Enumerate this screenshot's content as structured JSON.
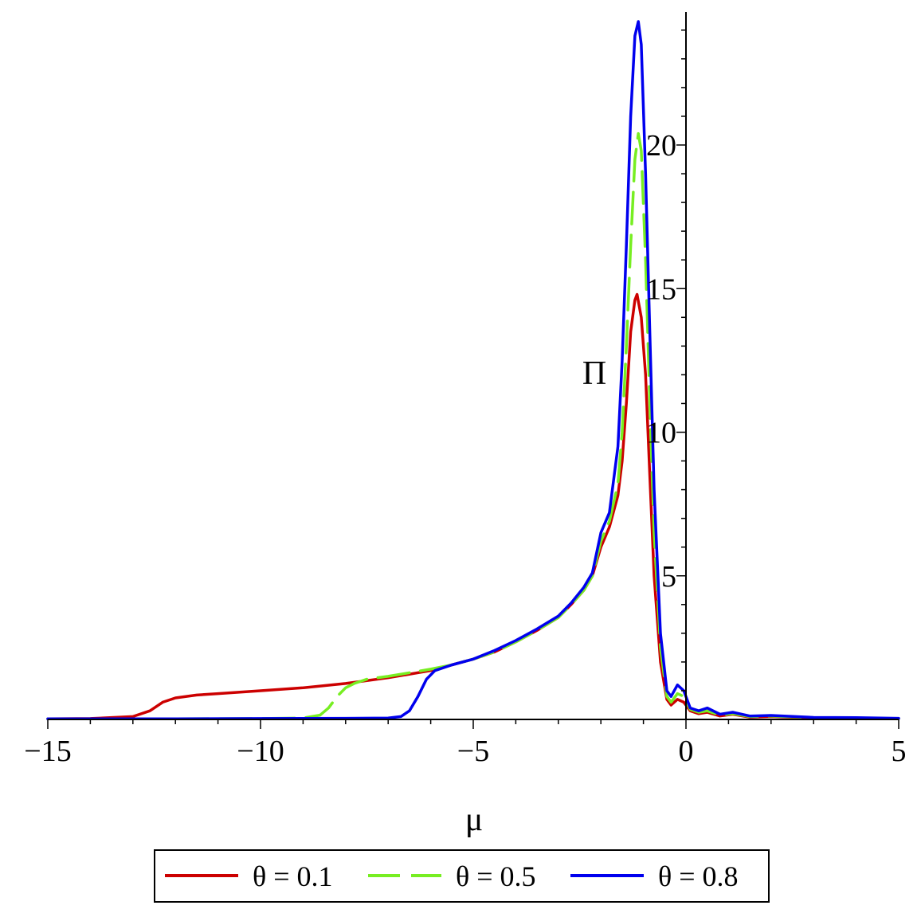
{
  "chart_data": {
    "type": "line",
    "xlabel": "μ",
    "ylabel": "Π",
    "xlim": [
      -15,
      5
    ],
    "ylim": [
      0,
      24.5
    ],
    "x_ticks": [
      -15,
      -10,
      -5,
      0,
      5
    ],
    "x_tick_labels": [
      "−15",
      "−10",
      "−5",
      "0",
      "5"
    ],
    "y_ticks": [
      5,
      10,
      15,
      20
    ],
    "y_tick_labels": [
      "5",
      "10",
      "15",
      "20"
    ],
    "legend_position": "bottom",
    "series": [
      {
        "name": "θ = 0.1",
        "color": "#cc0000",
        "dash": "solid",
        "points": [
          [
            -15,
            0.02
          ],
          [
            -14,
            0.03
          ],
          [
            -13,
            0.1
          ],
          [
            -12.6,
            0.3
          ],
          [
            -12.3,
            0.6
          ],
          [
            -12,
            0.75
          ],
          [
            -11.5,
            0.85
          ],
          [
            -11,
            0.9
          ],
          [
            -10,
            1.0
          ],
          [
            -9,
            1.1
          ],
          [
            -8,
            1.25
          ],
          [
            -7,
            1.45
          ],
          [
            -6,
            1.7
          ],
          [
            -5.5,
            1.9
          ],
          [
            -5,
            2.1
          ],
          [
            -4.5,
            2.35
          ],
          [
            -4,
            2.7
          ],
          [
            -3.5,
            3.1
          ],
          [
            -3,
            3.55
          ],
          [
            -2.7,
            4.0
          ],
          [
            -2.4,
            4.5
          ],
          [
            -2.2,
            5.0
          ],
          [
            -2,
            6.0
          ],
          [
            -1.8,
            6.7
          ],
          [
            -1.6,
            7.8
          ],
          [
            -1.5,
            9.0
          ],
          [
            -1.4,
            11.0
          ],
          [
            -1.3,
            13.5
          ],
          [
            -1.2,
            14.6
          ],
          [
            -1.15,
            14.8
          ],
          [
            -1.05,
            14.0
          ],
          [
            -0.95,
            12.0
          ],
          [
            -0.85,
            8.5
          ],
          [
            -0.75,
            5.0
          ],
          [
            -0.6,
            2.0
          ],
          [
            -0.45,
            0.7
          ],
          [
            -0.35,
            0.5
          ],
          [
            -0.2,
            0.7
          ],
          [
            -0.05,
            0.6
          ],
          [
            0.1,
            0.3
          ],
          [
            0.3,
            0.2
          ],
          [
            0.5,
            0.25
          ],
          [
            0.8,
            0.12
          ],
          [
            1.1,
            0.18
          ],
          [
            1.5,
            0.08
          ],
          [
            2,
            0.1
          ],
          [
            3,
            0.05
          ],
          [
            4,
            0.04
          ],
          [
            5,
            0.03
          ]
        ]
      },
      {
        "name": "θ = 0.5",
        "color": "#77ee22",
        "dash": "dashed",
        "points": [
          [
            -15,
            0.02
          ],
          [
            -12,
            0.02
          ],
          [
            -10,
            0.03
          ],
          [
            -9,
            0.05
          ],
          [
            -8.6,
            0.15
          ],
          [
            -8.4,
            0.4
          ],
          [
            -8.2,
            0.8
          ],
          [
            -8,
            1.1
          ],
          [
            -7.8,
            1.25
          ],
          [
            -7.5,
            1.4
          ],
          [
            -7,
            1.5
          ],
          [
            -6,
            1.75
          ],
          [
            -5.5,
            1.9
          ],
          [
            -5,
            2.1
          ],
          [
            -4.5,
            2.35
          ],
          [
            -4,
            2.7
          ],
          [
            -3.5,
            3.1
          ],
          [
            -3,
            3.55
          ],
          [
            -2.7,
            4.0
          ],
          [
            -2.4,
            4.5
          ],
          [
            -2.2,
            5.0
          ],
          [
            -2,
            6.2
          ],
          [
            -1.8,
            6.9
          ],
          [
            -1.6,
            8.2
          ],
          [
            -1.5,
            10.0
          ],
          [
            -1.4,
            13.0
          ],
          [
            -1.3,
            16.5
          ],
          [
            -1.2,
            19.5
          ],
          [
            -1.12,
            20.4
          ],
          [
            -1.05,
            19.8
          ],
          [
            -0.95,
            16.0
          ],
          [
            -0.85,
            11.0
          ],
          [
            -0.75,
            6.5
          ],
          [
            -0.6,
            2.5
          ],
          [
            -0.45,
            0.8
          ],
          [
            -0.35,
            0.6
          ],
          [
            -0.2,
            0.9
          ],
          [
            -0.05,
            0.8
          ],
          [
            0.1,
            0.35
          ],
          [
            0.3,
            0.25
          ],
          [
            0.5,
            0.3
          ],
          [
            0.8,
            0.15
          ],
          [
            1.1,
            0.2
          ],
          [
            1.5,
            0.1
          ],
          [
            2,
            0.12
          ],
          [
            3,
            0.06
          ],
          [
            4,
            0.05
          ],
          [
            5,
            0.03
          ]
        ]
      },
      {
        "name": "θ = 0.8",
        "color": "#0000ee",
        "dash": "solid",
        "points": [
          [
            -15,
            0.02
          ],
          [
            -12,
            0.02
          ],
          [
            -10,
            0.03
          ],
          [
            -8,
            0.04
          ],
          [
            -7,
            0.05
          ],
          [
            -6.7,
            0.1
          ],
          [
            -6.5,
            0.3
          ],
          [
            -6.3,
            0.8
          ],
          [
            -6.1,
            1.4
          ],
          [
            -5.9,
            1.7
          ],
          [
            -5.5,
            1.9
          ],
          [
            -5,
            2.1
          ],
          [
            -4.5,
            2.4
          ],
          [
            -4,
            2.75
          ],
          [
            -3.5,
            3.15
          ],
          [
            -3,
            3.6
          ],
          [
            -2.7,
            4.05
          ],
          [
            -2.4,
            4.6
          ],
          [
            -2.2,
            5.1
          ],
          [
            -2,
            6.5
          ],
          [
            -1.8,
            7.2
          ],
          [
            -1.6,
            9.5
          ],
          [
            -1.5,
            12.5
          ],
          [
            -1.4,
            16.5
          ],
          [
            -1.3,
            21.0
          ],
          [
            -1.2,
            23.8
          ],
          [
            -1.12,
            24.3
          ],
          [
            -1.05,
            23.5
          ],
          [
            -0.95,
            19.0
          ],
          [
            -0.85,
            13.5
          ],
          [
            -0.75,
            8.0
          ],
          [
            -0.6,
            3.0
          ],
          [
            -0.45,
            1.0
          ],
          [
            -0.35,
            0.8
          ],
          [
            -0.2,
            1.2
          ],
          [
            -0.05,
            1.0
          ],
          [
            0.1,
            0.4
          ],
          [
            0.3,
            0.3
          ],
          [
            0.5,
            0.4
          ],
          [
            0.8,
            0.18
          ],
          [
            1.1,
            0.25
          ],
          [
            1.5,
            0.12
          ],
          [
            2,
            0.14
          ],
          [
            3,
            0.07
          ],
          [
            4,
            0.06
          ],
          [
            5,
            0.04
          ]
        ]
      }
    ]
  }
}
